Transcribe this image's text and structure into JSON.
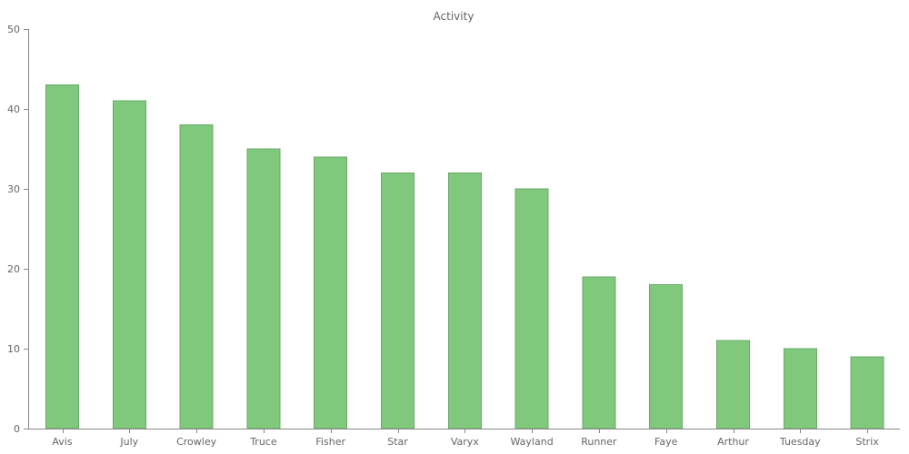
{
  "chart_data": {
    "type": "bar",
    "title": "Activity",
    "xlabel": "",
    "ylabel": "",
    "categories": [
      "Avis",
      "July",
      "Crowley",
      "Truce",
      "Fisher",
      "Star",
      "Varyx",
      "Wayland",
      "Runner",
      "Faye",
      "Arthur",
      "Tuesday",
      "Strix"
    ],
    "values": [
      43,
      41,
      38,
      35,
      34,
      32,
      32,
      30,
      19,
      18,
      11,
      10,
      9
    ],
    "ylim": [
      0,
      50
    ],
    "yticks": [
      0,
      10,
      20,
      30,
      40,
      50
    ],
    "grid": false,
    "legend": "none",
    "colors": {
      "bar": "#80c97c",
      "axis": "#888888",
      "text": "#666666"
    }
  }
}
